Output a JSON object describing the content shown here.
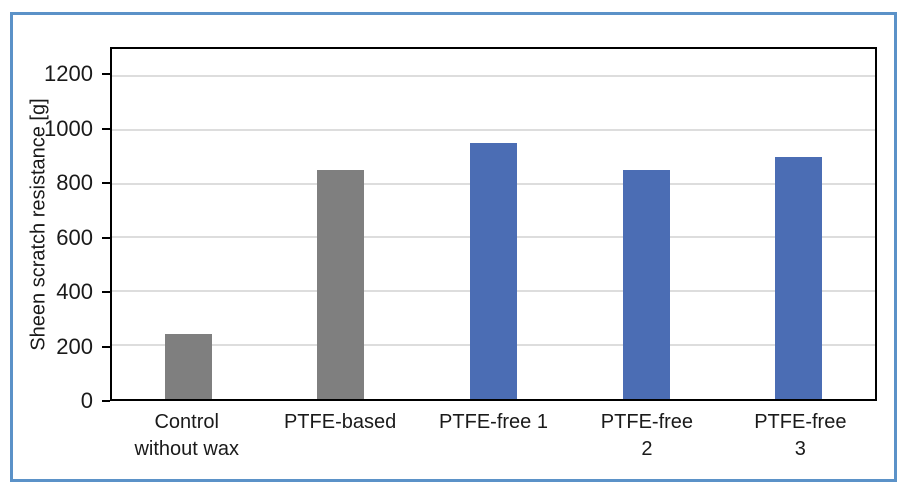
{
  "figure": {
    "frame_border_color": "#5b92c8",
    "background_color": "#ffffff",
    "axis_color": "#000000",
    "gridline_color": "#dddddd"
  },
  "chart_data": {
    "type": "bar",
    "title": "",
    "xlabel": "",
    "ylabel": "Sheen scratch resistance [g]",
    "categories": [
      "Control\nwithout wax",
      "PTFE-based",
      "PTFE-free 1",
      "PTFE-free\n2",
      "PTFE-free\n3"
    ],
    "values": [
      240,
      850,
      950,
      850,
      900
    ],
    "bar_colors": [
      "#7f7f7f",
      "#7f7f7f",
      "#4b6db4",
      "#4b6db4",
      "#4b6db4"
    ],
    "yticks": [
      0,
      200,
      400,
      600,
      800,
      1000,
      1200
    ],
    "ylim": [
      0,
      1300
    ],
    "grid": true,
    "legend_position": "none"
  }
}
